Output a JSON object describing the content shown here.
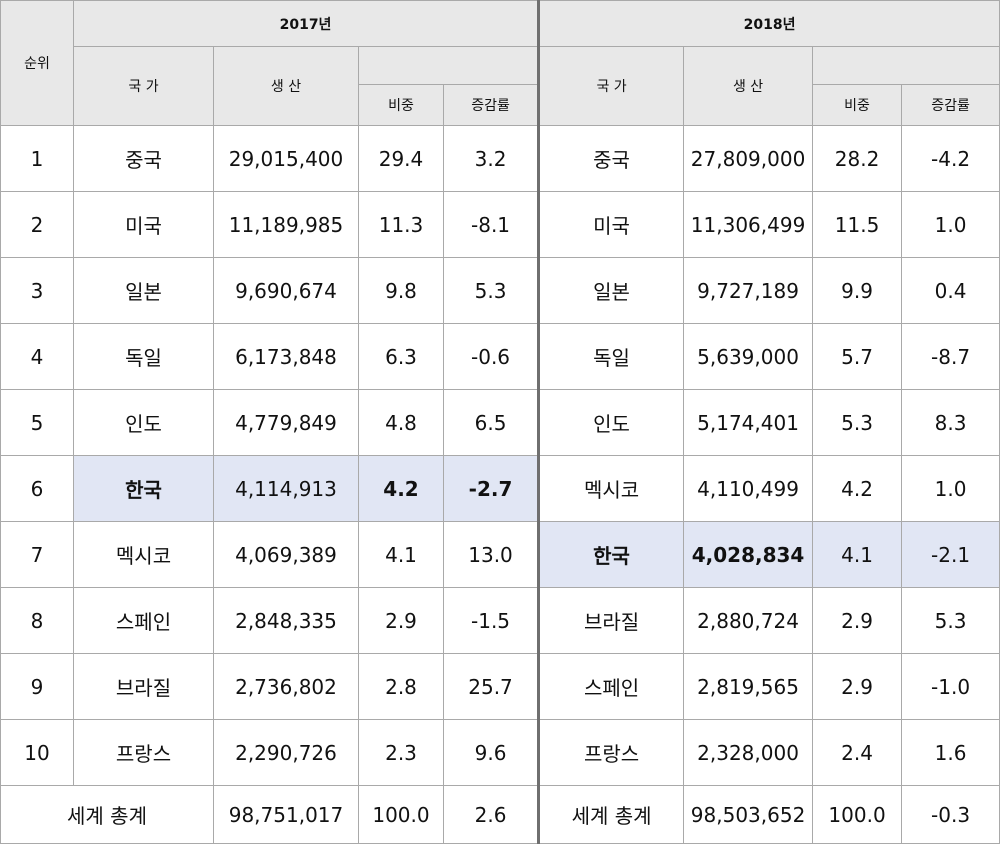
{
  "headers": {
    "rank": "순위",
    "year_2017": "2017년",
    "year_2018": "2018년",
    "country": "국 가",
    "production": "생 산",
    "share": "비중",
    "growth": "증감률"
  },
  "rows": [
    {
      "rank": "1",
      "c17": "중국",
      "p17": "29,015,400",
      "s17": "29.4",
      "g17": "3.2",
      "c18": "중국",
      "p18": "27,809,000",
      "s18": "28.2",
      "g18": "-4.2"
    },
    {
      "rank": "2",
      "c17": "미국",
      "p17": "11,189,985",
      "s17": "11.3",
      "g17": "-8.1",
      "c18": "미국",
      "p18": "11,306,499",
      "s18": "11.5",
      "g18": "1.0"
    },
    {
      "rank": "3",
      "c17": "일본",
      "p17": "9,690,674",
      "s17": "9.8",
      "g17": "5.3",
      "c18": "일본",
      "p18": "9,727,189",
      "s18": "9.9",
      "g18": "0.4"
    },
    {
      "rank": "4",
      "c17": "독일",
      "p17": "6,173,848",
      "s17": "6.3",
      "g17": "-0.6",
      "c18": "독일",
      "p18": "5,639,000",
      "s18": "5.7",
      "g18": "-8.7"
    },
    {
      "rank": "5",
      "c17": "인도",
      "p17": "4,779,849",
      "s17": "4.8",
      "g17": "6.5",
      "c18": "인도",
      "p18": "5,174,401",
      "s18": "5.3",
      "g18": "8.3"
    },
    {
      "rank": "6",
      "c17": "한국",
      "p17": "4,114,913",
      "s17": "4.2",
      "g17": "-2.7",
      "c18": "멕시코",
      "p18": "4,110,499",
      "s18": "4.2",
      "g18": "1.0"
    },
    {
      "rank": "7",
      "c17": "멕시코",
      "p17": "4,069,389",
      "s17": "4.1",
      "g17": "13.0",
      "c18": "한국",
      "p18": "4,028,834",
      "s18": "4.1",
      "g18": "-2.1"
    },
    {
      "rank": "8",
      "c17": "스페인",
      "p17": "2,848,335",
      "s17": "2.9",
      "g17": "-1.5",
      "c18": "브라질",
      "p18": "2,880,724",
      "s18": "2.9",
      "g18": "5.3"
    },
    {
      "rank": "9",
      "c17": "브라질",
      "p17": "2,736,802",
      "s17": "2.8",
      "g17": "25.7",
      "c18": "스페인",
      "p18": "2,819,565",
      "s18": "2.9",
      "g18": "-1.0"
    },
    {
      "rank": "10",
      "c17": "프랑스",
      "p17": "2,290,726",
      "s17": "2.3",
      "g17": "9.6",
      "c18": "프랑스",
      "p18": "2,328,000",
      "s18": "2.4",
      "g18": "1.6"
    }
  ],
  "total": {
    "label_2017": "세계 총계",
    "p17": "98,751,017",
    "s17": "100.0",
    "g17": "2.6",
    "label_2018": "세계 총계",
    "p18": "98,503,652",
    "s18": "100.0",
    "g18": "-0.3"
  },
  "colors": {
    "header_bg": "#e8e8e8",
    "highlight_bg": "#e1e6f4",
    "border": "#a9a9a9",
    "year_separator": "#6f6f6f"
  }
}
